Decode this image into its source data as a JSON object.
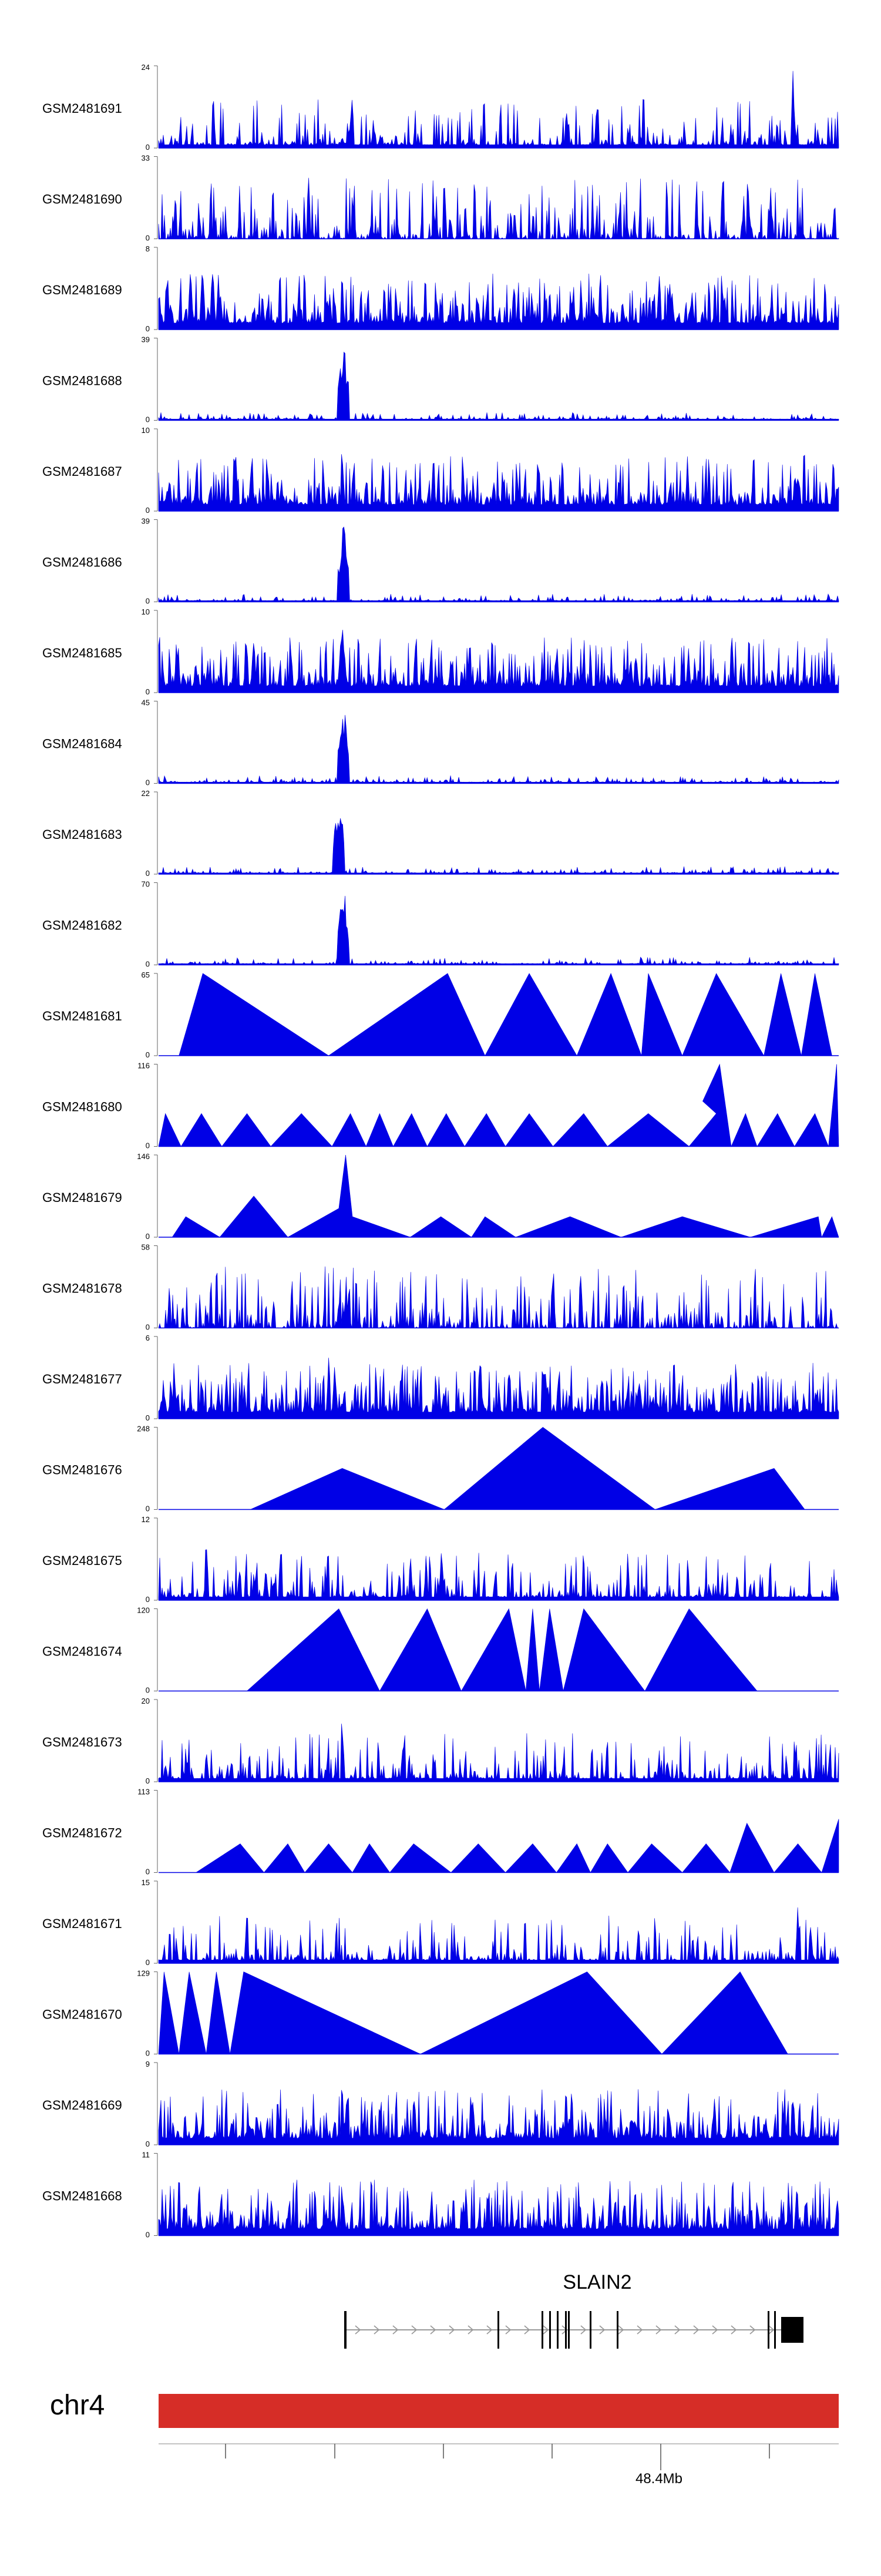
{
  "chart_data": {
    "type": "area",
    "title": "",
    "chromosome": "chr4",
    "axis_tick_label": "48.4Mb",
    "colors": {
      "signal": "#0000e6",
      "ideogram": "#d62d27",
      "gene": "#000000",
      "strand_arrow": "#999999",
      "axis": "#000000",
      "text": "#000000"
    },
    "gene": {
      "name": "SLAIN2",
      "strand": "+"
    },
    "tracks": [
      {
        "name": "GSM2481691",
        "ymax": 24,
        "ymin": 0,
        "style": "noise",
        "peaks": [
          [
            0.933,
            1.0
          ],
          [
            0.27,
            0.18
          ]
        ]
      },
      {
        "name": "GSM2481690",
        "ymax": 33,
        "ymin": 0,
        "style": "spiky",
        "peaks": [
          [
            0.42,
            0.85
          ],
          [
            0.9,
            0.8
          ]
        ]
      },
      {
        "name": "GSM2481689",
        "ymax": 8,
        "ymin": 0,
        "style": "dense",
        "peaks": [
          [
            0.27,
            0.95
          ],
          [
            0.09,
            0.7
          ]
        ]
      },
      {
        "name": "GSM2481688",
        "ymax": 39,
        "ymin": 0,
        "style": "peak",
        "peaks": [
          [
            0.272,
            1.0
          ]
        ]
      },
      {
        "name": "GSM2481687",
        "ymax": 10,
        "ymin": 0,
        "style": "dense",
        "peaks": [
          [
            0.27,
            0.95
          ]
        ]
      },
      {
        "name": "GSM2481686",
        "ymax": 39,
        "ymin": 0,
        "style": "peak",
        "peaks": [
          [
            0.272,
            1.0
          ]
        ]
      },
      {
        "name": "GSM2481685",
        "ymax": 10,
        "ymin": 0,
        "style": "dense",
        "peaks": [
          [
            0.27,
            1.0
          ]
        ]
      },
      {
        "name": "GSM2481684",
        "ymax": 45,
        "ymin": 0,
        "style": "peak",
        "peaks": [
          [
            0.272,
            1.0
          ]
        ]
      },
      {
        "name": "GSM2481683",
        "ymax": 22,
        "ymin": 0,
        "style": "peak",
        "peaks": [
          [
            0.265,
            1.0
          ]
        ]
      },
      {
        "name": "GSM2481682",
        "ymax": 70,
        "ymin": 0,
        "style": "peak",
        "peaks": [
          [
            0.272,
            1.0
          ]
        ]
      },
      {
        "name": "GSM2481681",
        "ymax": 65,
        "ymin": 0,
        "style": "triangles",
        "points": [
          [
            0.03,
            0
          ],
          [
            0.065,
            1
          ],
          [
            0.25,
            0
          ],
          [
            0.425,
            1
          ],
          [
            0.48,
            0
          ],
          [
            0.545,
            1
          ],
          [
            0.615,
            0
          ],
          [
            0.665,
            1
          ],
          [
            0.71,
            0
          ],
          [
            0.72,
            1
          ],
          [
            0.77,
            0
          ],
          [
            0.82,
            1
          ],
          [
            0.89,
            0
          ],
          [
            0.915,
            1
          ],
          [
            0.945,
            0
          ],
          [
            0.965,
            1
          ],
          [
            0.99,
            0
          ]
        ]
      },
      {
        "name": "GSM2481680",
        "ymax": 116,
        "ymin": 0,
        "style": "triangles",
        "points": [
          [
            0,
            0
          ],
          [
            0.01,
            0.4
          ],
          [
            0.033,
            0
          ],
          [
            0.063,
            0.4
          ],
          [
            0.093,
            0
          ],
          [
            0.13,
            0.4
          ],
          [
            0.165,
            0
          ],
          [
            0.21,
            0.4
          ],
          [
            0.255,
            0
          ],
          [
            0.282,
            0.4
          ],
          [
            0.305,
            0
          ],
          [
            0.325,
            0.4
          ],
          [
            0.345,
            0
          ],
          [
            0.372,
            0.4
          ],
          [
            0.395,
            0
          ],
          [
            0.423,
            0.4
          ],
          [
            0.45,
            0
          ],
          [
            0.482,
            0.4
          ],
          [
            0.51,
            0
          ],
          [
            0.545,
            0.4
          ],
          [
            0.58,
            0
          ],
          [
            0.625,
            0.4
          ],
          [
            0.66,
            0
          ],
          [
            0.72,
            0.4
          ],
          [
            0.78,
            0
          ],
          [
            0.82,
            0.4
          ],
          [
            0.8,
            0.55
          ],
          [
            0.825,
            1
          ],
          [
            0.842,
            0
          ],
          [
            0.863,
            0.4
          ],
          [
            0.88,
            0
          ],
          [
            0.91,
            0.4
          ],
          [
            0.935,
            0
          ],
          [
            0.965,
            0.4
          ],
          [
            0.985,
            0
          ],
          [
            0.997,
            1
          ],
          [
            1,
            0
          ]
        ]
      },
      {
        "name": "GSM2481679",
        "ymax": 146,
        "ymin": 0,
        "style": "triangles",
        "points": [
          [
            0.02,
            0
          ],
          [
            0.04,
            0.25
          ],
          [
            0.09,
            0
          ],
          [
            0.14,
            0.5
          ],
          [
            0.19,
            0
          ],
          [
            0.265,
            0.35
          ],
          [
            0.275,
            1
          ],
          [
            0.285,
            0.25
          ],
          [
            0.37,
            0
          ],
          [
            0.415,
            0.25
          ],
          [
            0.46,
            0
          ],
          [
            0.48,
            0.25
          ],
          [
            0.525,
            0
          ],
          [
            0.605,
            0.25
          ],
          [
            0.68,
            0
          ],
          [
            0.77,
            0.25
          ],
          [
            0.87,
            0
          ],
          [
            0.97,
            0.25
          ],
          [
            0.975,
            0
          ],
          [
            0.99,
            0.25
          ],
          [
            1,
            0
          ]
        ]
      },
      {
        "name": "GSM2481678",
        "ymax": 58,
        "ymin": 0,
        "style": "spiky",
        "peaks": [
          [
            0.58,
            1.0
          ],
          [
            0.62,
            0.9
          ]
        ]
      },
      {
        "name": "GSM2481677",
        "ymax": 6,
        "ymin": 0,
        "style": "dense",
        "peaks": [
          [
            0.25,
            0.9
          ]
        ]
      },
      {
        "name": "GSM2481676",
        "ymax": 248,
        "ymin": 0,
        "style": "triangles",
        "points": [
          [
            0.135,
            0
          ],
          [
            0.27,
            0.5
          ],
          [
            0.42,
            0
          ],
          [
            0.565,
            1
          ],
          [
            0.73,
            0
          ],
          [
            0.905,
            0.5
          ],
          [
            0.95,
            0
          ]
        ]
      },
      {
        "name": "GSM2481675",
        "ymax": 12,
        "ymin": 0,
        "style": "noise",
        "peaks": [
          [
            0.07,
            1.0
          ],
          [
            0.18,
            0.9
          ]
        ]
      },
      {
        "name": "GSM2481674",
        "ymax": 120,
        "ymin": 0,
        "style": "triangles",
        "points": [
          [
            0.13,
            0
          ],
          [
            0.265,
            1
          ],
          [
            0.325,
            0
          ],
          [
            0.395,
            1
          ],
          [
            0.445,
            0
          ],
          [
            0.515,
            1
          ],
          [
            0.54,
            0
          ],
          [
            0.55,
            1
          ],
          [
            0.56,
            0
          ],
          [
            0.575,
            1
          ],
          [
            0.595,
            0
          ],
          [
            0.625,
            1
          ],
          [
            0.715,
            0
          ],
          [
            0.78,
            1
          ],
          [
            0.88,
            0
          ]
        ]
      },
      {
        "name": "GSM2481673",
        "ymax": 20,
        "ymin": 0,
        "style": "noise",
        "peaks": [
          [
            0.27,
            1.0
          ],
          [
            0.07,
            0.55
          ]
        ]
      },
      {
        "name": "GSM2481672",
        "ymax": 113,
        "ymin": 0,
        "style": "triangles",
        "points": [
          [
            0.055,
            0
          ],
          [
            0.12,
            0.35
          ],
          [
            0.155,
            0
          ],
          [
            0.19,
            0.35
          ],
          [
            0.215,
            0
          ],
          [
            0.25,
            0.35
          ],
          [
            0.285,
            0
          ],
          [
            0.31,
            0.35
          ],
          [
            0.34,
            0
          ],
          [
            0.375,
            0.35
          ],
          [
            0.43,
            0
          ],
          [
            0.47,
            0.35
          ],
          [
            0.51,
            0
          ],
          [
            0.55,
            0.35
          ],
          [
            0.585,
            0
          ],
          [
            0.615,
            0.35
          ],
          [
            0.635,
            0
          ],
          [
            0.66,
            0.35
          ],
          [
            0.69,
            0
          ],
          [
            0.725,
            0.35
          ],
          [
            0.77,
            0
          ],
          [
            0.805,
            0.35
          ],
          [
            0.84,
            0
          ],
          [
            0.865,
            0.6
          ],
          [
            0.905,
            0
          ],
          [
            0.94,
            0.35
          ],
          [
            0.975,
            0
          ],
          [
            1,
            0.65
          ]
        ]
      },
      {
        "name": "GSM2481671",
        "ymax": 15,
        "ymin": 0,
        "style": "noise",
        "peaks": [
          [
            0.94,
            1.0
          ],
          [
            0.13,
            0.75
          ]
        ]
      },
      {
        "name": "GSM2481670",
        "ymax": 129,
        "ymin": 0,
        "style": "triangles",
        "points": [
          [
            0,
            0
          ],
          [
            0.008,
            1
          ],
          [
            0.03,
            0
          ],
          [
            0.045,
            1
          ],
          [
            0.07,
            0
          ],
          [
            0.085,
            1
          ],
          [
            0.105,
            0
          ],
          [
            0.125,
            1
          ],
          [
            0.385,
            0
          ],
          [
            0.63,
            1
          ],
          [
            0.74,
            0
          ],
          [
            0.855,
            1
          ],
          [
            0.925,
            0
          ]
        ]
      },
      {
        "name": "GSM2481669",
        "ymax": 9,
        "ymin": 0,
        "style": "dense",
        "peaks": [
          [
            0.27,
            1.0
          ]
        ]
      },
      {
        "name": "GSM2481668",
        "ymax": 11,
        "ymin": 0,
        "style": "dense",
        "peaks": [
          [
            0.27,
            0.95
          ]
        ]
      }
    ]
  }
}
